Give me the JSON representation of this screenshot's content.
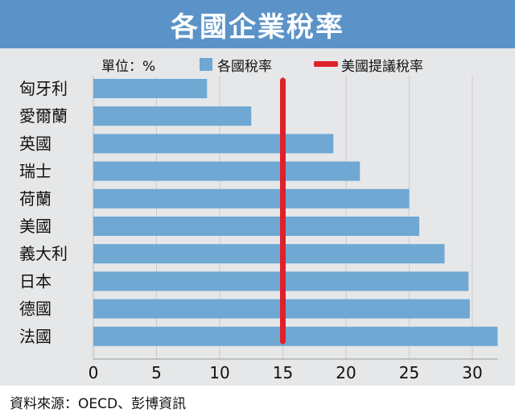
{
  "chart_data": {
    "type": "bar",
    "orientation": "horizontal",
    "title": "各國企業稅率",
    "unit_label": "單位：%",
    "categories": [
      "匈牙利",
      "愛爾蘭",
      "英國",
      "瑞士",
      "荷蘭",
      "美國",
      "義大利",
      "日本",
      "德國",
      "法國"
    ],
    "series": [
      {
        "name": "各國稅率",
        "values": [
          9,
          12.5,
          19,
          21.1,
          25,
          25.8,
          27.8,
          29.7,
          29.8,
          32
        ]
      }
    ],
    "reference_line": {
      "name": "美國提議稅率",
      "value": 15
    },
    "x_ticks": [
      "0",
      "5",
      "10",
      "15",
      "20",
      "25",
      "30"
    ],
    "xlim": [
      0,
      32
    ],
    "grid": true,
    "legend_position": "top",
    "colors": {
      "bar": "#6fa8d3",
      "reference": "#e0212a",
      "title_bg": "#5b93c8",
      "panel_bg": "#e6e7e8",
      "grid": "#c9cacc"
    },
    "source": "資料來源：OECD、彭博資訊"
  }
}
